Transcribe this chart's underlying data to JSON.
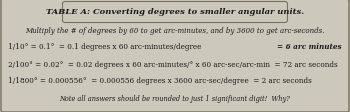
{
  "title": "TABLE A: Converting degrees to smaller angular units.",
  "subtitle": "Multiply the # of degrees by 60 to get arc-minutes, and by 3600 to get arc-seconds.",
  "row1_left": "1/10° = 0.1°  = 0.1 degrees x 60 arc-minutes/degree",
  "row1_right": "= 6 arc minutes",
  "row2": "2/100° = 0.02°  = 0.02 degrees x 60 arc-minutes/° x 60 arc-sec/arc-min  = 72 arc seconds",
  "row3": "1/1800° = 0.000556°  = 0.000556 degrees x 3600 arc-sec/degree  = 2 arc seconds",
  "note": "Note all answers should be rounded to just 1 significant digit!  Why?",
  "bg_color": "#ccc8bb",
  "text_color": "#1a1a1a",
  "border_color": "#777060",
  "title_fontsize": 6.0,
  "body_fontsize": 5.2,
  "note_fontsize": 4.8
}
